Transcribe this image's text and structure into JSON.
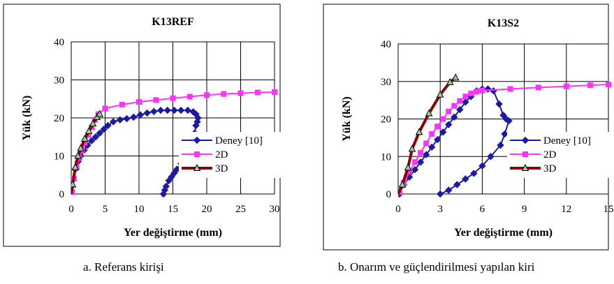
{
  "captions": {
    "a": "a. Referans kirişi",
    "b": "b. Onarım ve güçlendirilmesi yapılan kiri"
  },
  "series_colors": {
    "deney": "#1a1aa6",
    "d2": "#ff33ff",
    "d3": "#8b0000",
    "d3_marker_fill": "#9acd9a"
  },
  "chart_data": [
    {
      "type": "scatter",
      "title": "K13REF",
      "xlabel": "Yer değiştirme (mm)",
      "ylabel": "Yük (kN)",
      "xlim": [
        0,
        30
      ],
      "ylim": [
        0,
        40
      ],
      "xticks": [
        "0",
        "5",
        "10",
        "15",
        "20",
        "25",
        "30"
      ],
      "yticks": [
        "0",
        "10",
        "20",
        "30",
        "40"
      ],
      "grid": true,
      "legend_position": "right",
      "series": [
        {
          "name": "Deney [10]",
          "marker": "diamond",
          "x": [
            0.1,
            0.3,
            0.6,
            1.0,
            1.4,
            1.9,
            2.4,
            3.0,
            3.6,
            4.2,
            4.8,
            5.4,
            6.2,
            7.2,
            8.2,
            9.2,
            10.2,
            11.2,
            12.2,
            13.2,
            14.2,
            15.2,
            16.2,
            17.2,
            18.0,
            18.4,
            18.7,
            18.6,
            18.4,
            18.2,
            17.6,
            17.2,
            16.8,
            16.2,
            15.6,
            15.2,
            14.8,
            14.4,
            14.0,
            13.8,
            13.6
          ],
          "y": [
            2.0,
            4.0,
            6.5,
            8.5,
            10.0,
            11.5,
            12.8,
            14.0,
            15.0,
            16.0,
            17.0,
            18.0,
            19.0,
            19.5,
            19.8,
            20.2,
            20.8,
            21.3,
            21.7,
            22.0,
            22.0,
            22.0,
            22.0,
            22.0,
            21.6,
            21.0,
            20.0,
            19.0,
            18.0,
            16.0,
            12.5,
            11.0,
            9.5,
            8.0,
            6.5,
            5.5,
            4.5,
            3.5,
            2.0,
            1.0,
            0.0
          ]
        },
        {
          "name": "2D",
          "marker": "square",
          "x": [
            0.1,
            0.4,
            0.8,
            1.2,
            1.6,
            2.0,
            2.5,
            3.0,
            3.5,
            4.0,
            5.0,
            7.5,
            10.0,
            12.5,
            15.0,
            17.5,
            20.0,
            22.5,
            25.0,
            27.5,
            30.0
          ],
          "y": [
            0.5,
            4.0,
            7.0,
            9.5,
            11.5,
            13.5,
            15.5,
            17.5,
            19.5,
            21.0,
            22.5,
            23.5,
            24.2,
            24.7,
            25.2,
            25.6,
            26.0,
            26.3,
            26.5,
            26.7,
            26.8
          ]
        },
        {
          "name": "3D",
          "marker": "triangle",
          "x": [
            0,
            0.2,
            0.6,
            1.0,
            1.4,
            2.0,
            2.6,
            3.2,
            3.8,
            4.2
          ],
          "y": [
            0,
            2.5,
            7.0,
            10.0,
            12.0,
            14.5,
            16.5,
            18.5,
            20.2,
            21.0
          ]
        }
      ]
    },
    {
      "type": "scatter",
      "title": "K13S2",
      "xlabel": "Yer değiştirme (mm)",
      "ylabel": "Yük (kN)",
      "xlim": [
        0,
        15
      ],
      "ylim": [
        0,
        40
      ],
      "xticks": [
        "0",
        "3",
        "6",
        "9",
        "12",
        "15"
      ],
      "yticks": [
        "0",
        "10",
        "20",
        "30",
        "40"
      ],
      "grid": true,
      "legend_position": "right",
      "series": [
        {
          "name": "Deney [10]",
          "marker": "diamond",
          "x": [
            0.1,
            0.4,
            0.8,
            1.2,
            1.6,
            2.0,
            2.4,
            2.8,
            3.2,
            3.6,
            4.0,
            4.4,
            4.8,
            5.2,
            5.6,
            6.0,
            6.4,
            6.8,
            7.2,
            7.5,
            7.7,
            7.9,
            7.6,
            7.3,
            6.6,
            6.0,
            5.4,
            4.8,
            4.2,
            3.6,
            3.0
          ],
          "y": [
            0.0,
            2.5,
            4.5,
            6.5,
            8.5,
            10.5,
            12.5,
            14.5,
            16.5,
            18.5,
            20.5,
            22.5,
            24.5,
            26.0,
            27.5,
            28.0,
            28.0,
            27.5,
            24.0,
            21.0,
            20.0,
            19.5,
            16.0,
            13.0,
            10.0,
            7.5,
            5.5,
            4.0,
            2.5,
            1.0,
            0.0
          ]
        },
        {
          "name": "2D",
          "marker": "square",
          "x": [
            0.1,
            0.4,
            0.8,
            1.2,
            1.6,
            2.0,
            2.4,
            2.8,
            3.2,
            3.6,
            4.0,
            4.4,
            4.8,
            5.2,
            5.6,
            6.0,
            8.0,
            10.0,
            12.0,
            13.7,
            15.0
          ],
          "y": [
            0.5,
            3.0,
            6.0,
            8.5,
            11.0,
            13.5,
            16.0,
            18.0,
            20.0,
            22.0,
            23.5,
            24.8,
            26.0,
            26.8,
            27.3,
            27.6,
            28.0,
            28.4,
            28.7,
            29.0,
            29.2
          ]
        },
        {
          "name": "3D",
          "marker": "triangle",
          "x": [
            0,
            0.3,
            0.7,
            1.0,
            1.5,
            2.2,
            3.0,
            3.7,
            4.1
          ],
          "y": [
            0,
            2.5,
            7.0,
            12.0,
            16.5,
            21.5,
            26.5,
            29.8,
            31.0
          ]
        }
      ]
    }
  ]
}
